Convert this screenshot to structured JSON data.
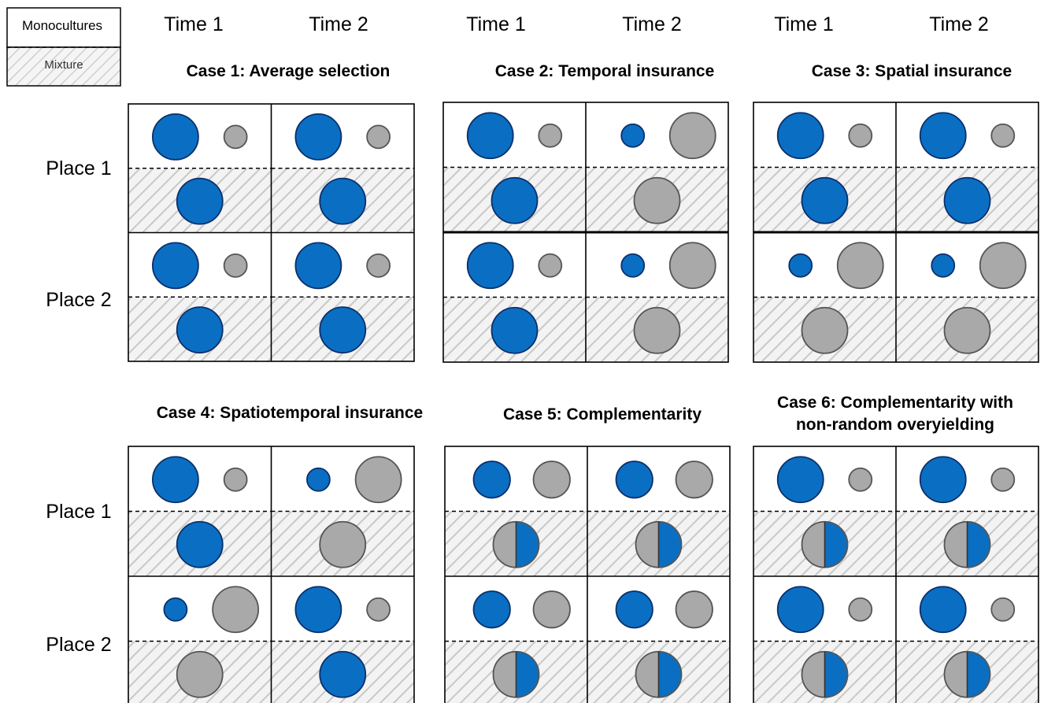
{
  "legend": {
    "monocultures_label": "Monocultures",
    "mixture_label": "Mixture"
  },
  "time_headers": [
    "Time 1",
    "Time 2",
    "Time 1",
    "Time 2",
    "Time 1",
    "Time 2"
  ],
  "place_labels": [
    "Place 1",
    "Place 2",
    "Place 1",
    "Place 2"
  ],
  "colors": {
    "species_a": "#0a6fc2",
    "species_a_stroke": "#0b2f6b",
    "species_b": "#a9a9a9",
    "species_b_stroke": "#555555",
    "hatch_bg": "#f3f3f3",
    "hatch_line": "#c8c8c8"
  },
  "cases": [
    {
      "title_lines": [
        "Case 1: Average selection"
      ],
      "cells": [
        {
          "place": 1,
          "time": 1,
          "mono_a": 1.0,
          "mono_b": 0.5,
          "mix": "a",
          "mix_size": 1.0
        },
        {
          "place": 1,
          "time": 2,
          "mono_a": 1.0,
          "mono_b": 0.5,
          "mix": "a",
          "mix_size": 1.0
        },
        {
          "place": 2,
          "time": 1,
          "mono_a": 1.0,
          "mono_b": 0.5,
          "mix": "a",
          "mix_size": 1.0
        },
        {
          "place": 2,
          "time": 2,
          "mono_a": 1.0,
          "mono_b": 0.5,
          "mix": "a",
          "mix_size": 1.0
        }
      ]
    },
    {
      "title_lines": [
        "Case 2: Temporal insurance"
      ],
      "cells": [
        {
          "place": 1,
          "time": 1,
          "mono_a": 1.0,
          "mono_b": 0.5,
          "mix": "a",
          "mix_size": 1.0
        },
        {
          "place": 1,
          "time": 2,
          "mono_a": 0.5,
          "mono_b": 1.0,
          "mix": "b",
          "mix_size": 1.0
        },
        {
          "place": 2,
          "time": 1,
          "mono_a": 1.0,
          "mono_b": 0.5,
          "mix": "a",
          "mix_size": 1.0
        },
        {
          "place": 2,
          "time": 2,
          "mono_a": 0.5,
          "mono_b": 1.0,
          "mix": "b",
          "mix_size": 1.0
        }
      ]
    },
    {
      "title_lines": [
        "Case 3: Spatial insurance"
      ],
      "cells": [
        {
          "place": 1,
          "time": 1,
          "mono_a": 1.0,
          "mono_b": 0.5,
          "mix": "a",
          "mix_size": 1.0
        },
        {
          "place": 1,
          "time": 2,
          "mono_a": 1.0,
          "mono_b": 0.5,
          "mix": "a",
          "mix_size": 1.0
        },
        {
          "place": 2,
          "time": 1,
          "mono_a": 0.5,
          "mono_b": 1.0,
          "mix": "b",
          "mix_size": 1.0
        },
        {
          "place": 2,
          "time": 2,
          "mono_a": 0.5,
          "mono_b": 1.0,
          "mix": "b",
          "mix_size": 1.0
        }
      ]
    },
    {
      "title_lines": [
        "Case 4: Spatiotemporal insurance"
      ],
      "cells": [
        {
          "place": 1,
          "time": 1,
          "mono_a": 1.0,
          "mono_b": 0.5,
          "mix": "a",
          "mix_size": 1.0
        },
        {
          "place": 1,
          "time": 2,
          "mono_a": 0.5,
          "mono_b": 1.0,
          "mix": "b",
          "mix_size": 1.0
        },
        {
          "place": 2,
          "time": 1,
          "mono_a": 0.5,
          "mono_b": 1.0,
          "mix": "b",
          "mix_size": 1.0
        },
        {
          "place": 2,
          "time": 2,
          "mono_a": 1.0,
          "mono_b": 0.5,
          "mix": "a",
          "mix_size": 1.0
        }
      ]
    },
    {
      "title_lines": [
        "Case 5: Complementarity"
      ],
      "cells": [
        {
          "place": 1,
          "time": 1,
          "mono_a": 0.8,
          "mono_b": 0.8,
          "mix": "split",
          "mix_size": 1.0
        },
        {
          "place": 1,
          "time": 2,
          "mono_a": 0.8,
          "mono_b": 0.8,
          "mix": "split",
          "mix_size": 1.0
        },
        {
          "place": 2,
          "time": 1,
          "mono_a": 0.8,
          "mono_b": 0.8,
          "mix": "split",
          "mix_size": 1.0
        },
        {
          "place": 2,
          "time": 2,
          "mono_a": 0.8,
          "mono_b": 0.8,
          "mix": "split",
          "mix_size": 1.0
        }
      ]
    },
    {
      "title_lines": [
        "Case 6: Complementarity with",
        "non-random overyielding"
      ],
      "cells": [
        {
          "place": 1,
          "time": 1,
          "mono_a": 1.0,
          "mono_b": 0.5,
          "mix": "split",
          "mix_size": 1.0
        },
        {
          "place": 1,
          "time": 2,
          "mono_a": 1.0,
          "mono_b": 0.5,
          "mix": "split",
          "mix_size": 1.0
        },
        {
          "place": 2,
          "time": 1,
          "mono_a": 1.0,
          "mono_b": 0.5,
          "mix": "split",
          "mix_size": 1.0
        },
        {
          "place": 2,
          "time": 2,
          "mono_a": 1.0,
          "mono_b": 0.5,
          "mix": "split",
          "mix_size": 1.0
        }
      ]
    }
  ]
}
